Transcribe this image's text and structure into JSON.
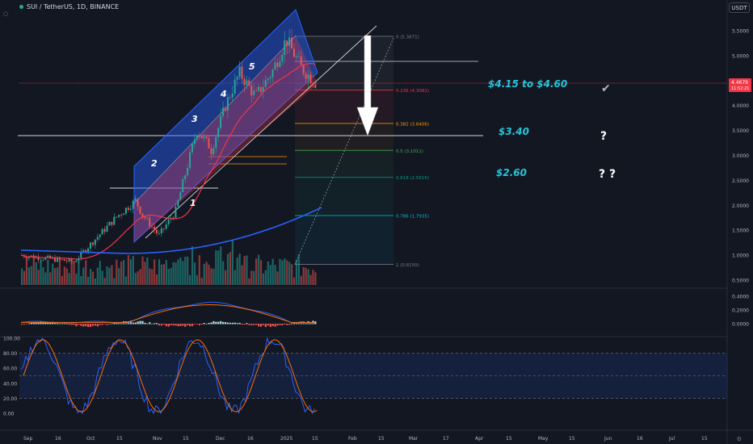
{
  "header": {
    "symbol_title": "SUI / TetherUS, 1D, BINANCE",
    "currency_button": "USDT"
  },
  "price_scale": [
    "5.5000",
    "5.0000",
    "4.5000",
    "4.0000",
    "3.5000",
    "3.0000",
    "2.5000",
    "2.0000",
    "1.5000",
    "1.0000",
    "0.5000"
  ],
  "current_price": {
    "value": "4.4679",
    "countdown": "11:52:21",
    "color": "#f23645"
  },
  "macd_scale": [
    "0.4000",
    "0.2000",
    "0.0000"
  ],
  "stoch_scale": [
    "100.00",
    "80.00",
    "60.00",
    "40.00",
    "20.00",
    "0.00"
  ],
  "time_axis": [
    "Sep",
    "16",
    "Oct",
    "15",
    "Nov",
    "15",
    "Dec",
    "16",
    "2025",
    "15",
    "Feb",
    "15",
    "Mar",
    "17",
    "Apr",
    "15",
    "May",
    "15",
    "Jun",
    "16",
    "Jul",
    "15"
  ],
  "fib_levels": [
    {
      "label": "0 (5.3871)",
      "color": "#787b86"
    },
    {
      "label": "0.236 (4.3081)",
      "color": "#f23645"
    },
    {
      "label": "0.382 (3.6406)",
      "color": "#ff9800"
    },
    {
      "label": "0.5 (3.1011)",
      "color": "#4caf50"
    },
    {
      "label": "0.618 (2.5616)",
      "color": "#089981"
    },
    {
      "label": "0.786 (1.7935)",
      "color": "#00bcd4"
    },
    {
      "label": "1 (0.8150)",
      "color": "#787b86"
    }
  ],
  "wave_labels": [
    "1",
    "2",
    "3",
    "4",
    "5"
  ],
  "annotations": {
    "target_1": "$4.15 to  $4.60",
    "target_2": "$3.40",
    "target_3": "$2.60",
    "mark_1": "✔",
    "mark_2": "?",
    "mark_3": "? ?"
  },
  "colors": {
    "background": "#131722",
    "up": "#26a69a",
    "down": "#ef5350",
    "channel_blue": "#2962ff",
    "channel_red": "#f23645",
    "annotation": "#26c6da",
    "ma_blue": "#2962ff",
    "ma_red": "#f23645"
  }
}
